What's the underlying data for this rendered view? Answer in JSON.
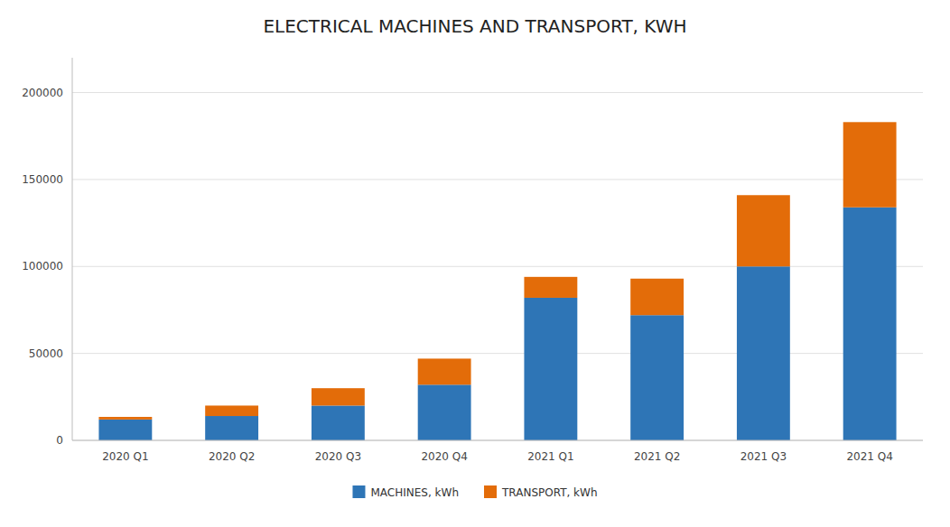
{
  "chart_data": {
    "type": "bar",
    "title": "ELECTRICAL MACHINES AND TRANSPORT, KWH",
    "categories": [
      "2020 Q1",
      "2020 Q2",
      "2020 Q3",
      "2020 Q4",
      "2021 Q1",
      "2021 Q2",
      "2021 Q3",
      "2021 Q4"
    ],
    "series": [
      {
        "name": "MACHINES, kWh",
        "color": "#2E75B6",
        "values": [
          12000,
          14000,
          20000,
          32000,
          82000,
          72000,
          100000,
          134000
        ]
      },
      {
        "name": "TRANSPORT, kWh",
        "color": "#E36C09",
        "values": [
          1500,
          6000,
          10000,
          15000,
          12000,
          21000,
          41000,
          49000
        ]
      }
    ],
    "stacked": true,
    "ylim": [
      0,
      220000
    ],
    "yticks": [
      0,
      50000,
      100000,
      150000,
      200000
    ],
    "grid": true,
    "legend": "bottom"
  }
}
